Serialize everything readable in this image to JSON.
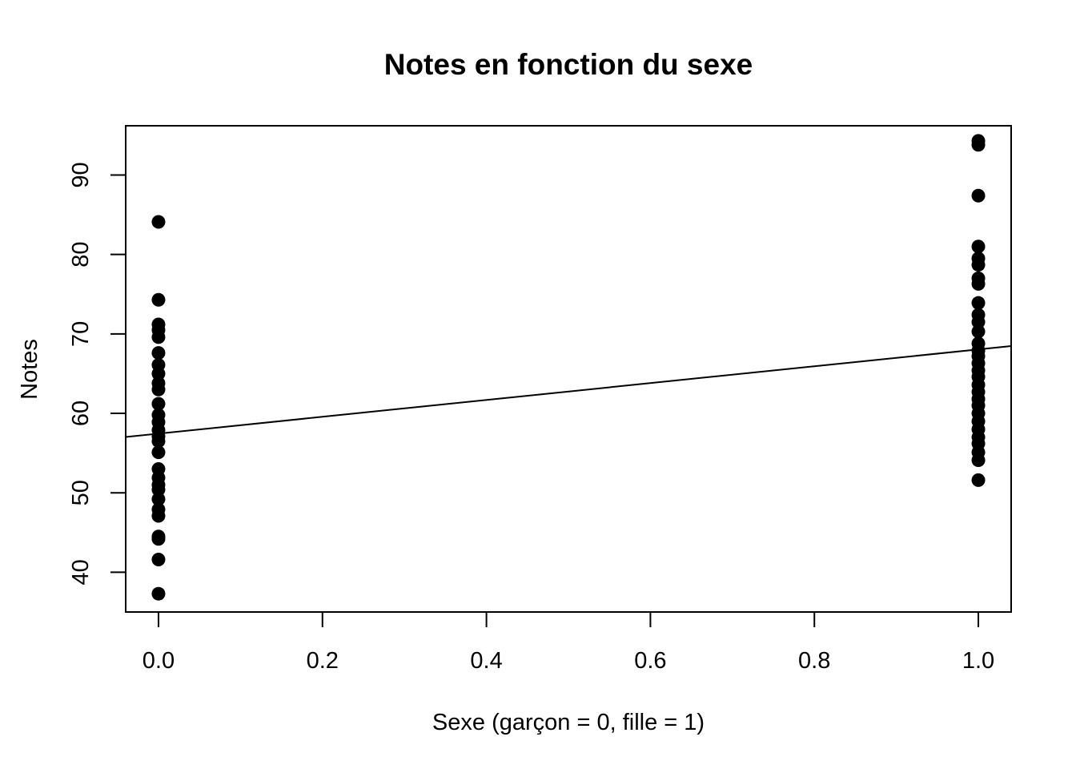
{
  "chart_data": {
    "type": "scatter",
    "title": "Notes en fonction du sexe",
    "xlabel": "Sexe (garçon = 0, fille = 1)",
    "ylabel": "Notes",
    "xlim": [
      -0.04,
      1.04
    ],
    "ylim": [
      35.0,
      96.2
    ],
    "x_ticks": [
      0.0,
      0.2,
      0.4,
      0.6,
      0.8,
      1.0
    ],
    "x_tick_labels": [
      "0.0",
      "0.2",
      "0.4",
      "0.6",
      "0.8",
      "1.0"
    ],
    "y_ticks": [
      40,
      50,
      60,
      70,
      80,
      90
    ],
    "y_tick_labels": [
      "40",
      "50",
      "60",
      "70",
      "80",
      "90"
    ],
    "grid": false,
    "series": [
      {
        "marker": "filled-circle",
        "color": "#000000",
        "points": [
          [
            0,
            84.1
          ],
          [
            0,
            74.3
          ],
          [
            0,
            71.2
          ],
          [
            0,
            70.5
          ],
          [
            0,
            69.6
          ],
          [
            0,
            67.6
          ],
          [
            0,
            66.1
          ],
          [
            0,
            65.0
          ],
          [
            0,
            63.8
          ],
          [
            0,
            63.0
          ],
          [
            0,
            61.2
          ],
          [
            0,
            59.8
          ],
          [
            0,
            58.9
          ],
          [
            0,
            57.9
          ],
          [
            0,
            57.1
          ],
          [
            0,
            56.5
          ],
          [
            0,
            55.1
          ],
          [
            0,
            53.0
          ],
          [
            0,
            51.9
          ],
          [
            0,
            51.0
          ],
          [
            0,
            50.4
          ],
          [
            0,
            49.2
          ],
          [
            0,
            47.9
          ],
          [
            0,
            47.1
          ],
          [
            0,
            44.5
          ],
          [
            0,
            44.2
          ],
          [
            0,
            41.6
          ],
          [
            0,
            37.3
          ],
          [
            1,
            94.3
          ],
          [
            1,
            93.8
          ],
          [
            1,
            87.4
          ],
          [
            1,
            81.0
          ],
          [
            1,
            79.5
          ],
          [
            1,
            78.7
          ],
          [
            1,
            77.0
          ],
          [
            1,
            76.3
          ],
          [
            1,
            73.9
          ],
          [
            1,
            72.4
          ],
          [
            1,
            71.5
          ],
          [
            1,
            70.3
          ],
          [
            1,
            68.8
          ],
          [
            1,
            67.9
          ],
          [
            1,
            67.2
          ],
          [
            1,
            66.3
          ],
          [
            1,
            65.4
          ],
          [
            1,
            64.6
          ],
          [
            1,
            63.6
          ],
          [
            1,
            62.7
          ],
          [
            1,
            61.8
          ],
          [
            1,
            61.0
          ],
          [
            1,
            60.0
          ],
          [
            1,
            59.0
          ],
          [
            1,
            58.0
          ],
          [
            1,
            57.0
          ],
          [
            1,
            56.2
          ],
          [
            1,
            55.1
          ],
          [
            1,
            54.1
          ],
          [
            1,
            51.6
          ]
        ]
      }
    ],
    "regression_line": {
      "intercept": 57.45,
      "slope": 10.6,
      "color": "#000000"
    }
  }
}
